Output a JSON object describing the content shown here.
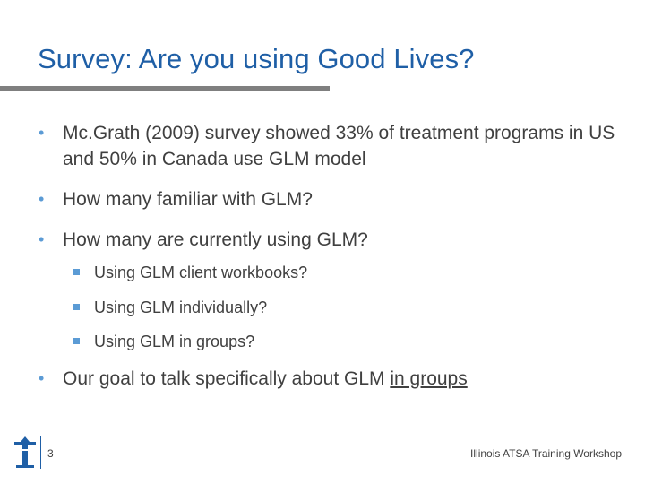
{
  "slide": {
    "title": "Survey:  Are you using Good Lives?",
    "bullets": [
      {
        "text": "Mc.Grath (2009) survey showed 33% of treatment programs in US and 50% in Canada use GLM model"
      },
      {
        "text": "How many familiar with GLM?"
      },
      {
        "text": "How many are currently using GLM?"
      }
    ],
    "sub_bullets": [
      {
        "text": "Using GLM client workbooks?"
      },
      {
        "text": "Using GLM individually?"
      },
      {
        "text": "Using GLM in groups?"
      }
    ],
    "final_bullet": {
      "text": "Our goal to talk specifically about GLM ",
      "underlined": "in groups"
    },
    "bullet_glyph": "•",
    "colors": {
      "title": "#1f5fa6",
      "bullet_accent": "#5b9bd5",
      "body_text": "#404040",
      "rule": "#7f7f7f"
    }
  },
  "footer": {
    "page_number": "3",
    "org_text": "Illinois ATSA Training Workshop",
    "logo_icon": "atsa-logo-icon"
  }
}
